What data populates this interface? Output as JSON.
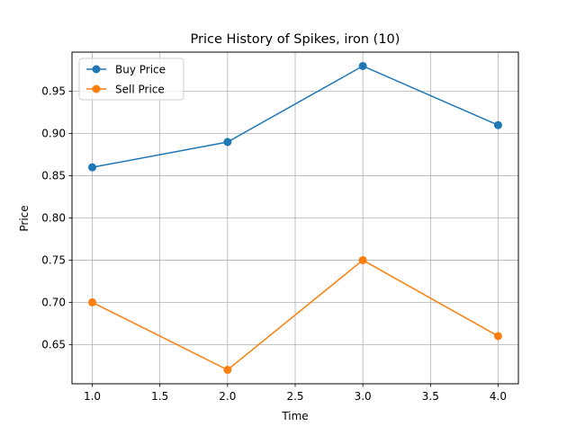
{
  "chart_data": {
    "type": "line",
    "title": "Price History of Spikes, iron (10)",
    "xlabel": "Time",
    "ylabel": "Price",
    "x": [
      1.0,
      2.0,
      3.0,
      4.0
    ],
    "xlim": [
      0.85,
      4.15
    ],
    "ylim": [
      0.6035,
      0.9965
    ],
    "xticks": [
      1.0,
      1.5,
      2.0,
      2.5,
      3.0,
      3.5,
      4.0
    ],
    "xtick_labels": [
      "1.0",
      "1.5",
      "2.0",
      "2.5",
      "3.0",
      "3.5",
      "4.0"
    ],
    "yticks": [
      0.65,
      0.7,
      0.75,
      0.8,
      0.85,
      0.9,
      0.95
    ],
    "ytick_labels": [
      "0.65",
      "0.70",
      "0.75",
      "0.80",
      "0.85",
      "0.90",
      "0.95"
    ],
    "grid": true,
    "legend_position": "top-left",
    "series": [
      {
        "name": "Buy Price",
        "values": [
          0.86,
          0.89,
          0.98,
          0.91
        ],
        "color": "#1f77b4"
      },
      {
        "name": "Sell Price",
        "values": [
          0.7,
          0.62,
          0.75,
          0.66
        ],
        "color": "#ff7f0e"
      }
    ]
  }
}
